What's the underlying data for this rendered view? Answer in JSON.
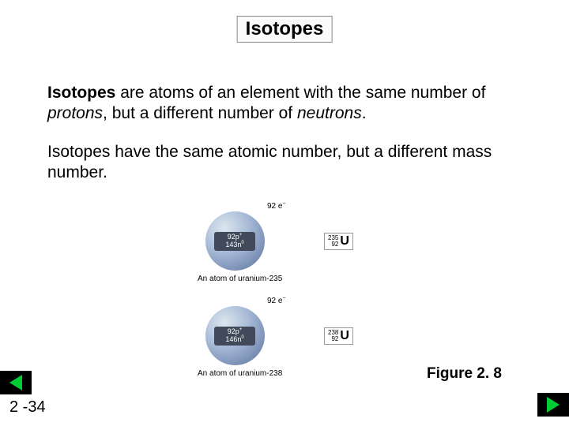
{
  "title": "Isotopes",
  "paragraph1": {
    "lead": "Isotopes",
    "mid1": " are atoms of an element with the same number of ",
    "em1": "protons",
    "mid2": ", but a different number of ",
    "em2": "neutrons",
    "tail": "."
  },
  "paragraph2": "Isotopes have the same atomic number, but a different mass number.",
  "atoms": [
    {
      "electrons": "92 e",
      "protons": "92p",
      "neutrons": "143n",
      "mass": "235",
      "z": "92",
      "symbol": "U",
      "caption": "An atom of uranium-235"
    },
    {
      "electrons": "92 e",
      "protons": "92p",
      "neutrons": "146n",
      "mass": "238",
      "z": "92",
      "symbol": "U",
      "caption": "An atom of uranium-238"
    }
  ],
  "figure_label": "Figure 2. 8",
  "page": "2 -34"
}
